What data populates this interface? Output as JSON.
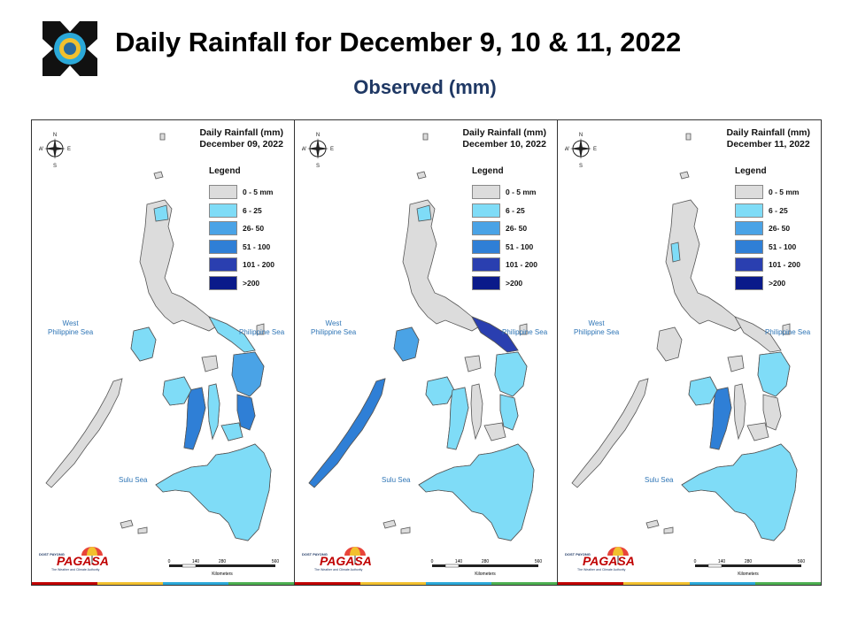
{
  "header": {
    "title": "Daily Rainfall for December 9, 10 & 11, 2022",
    "subtitle": "Observed (mm)"
  },
  "legend": {
    "title": "Legend",
    "items": [
      {
        "label": "0 - 5 mm",
        "color": "#dcdcdc"
      },
      {
        "label": "6 - 25",
        "color": "#7fdcf7"
      },
      {
        "label": "26- 50",
        "color": "#4aa3e6"
      },
      {
        "label": "51 - 100",
        "color": "#2f7fd6"
      },
      {
        "label": "101 - 200",
        "color": "#2a3fb0"
      },
      {
        "label": ">200",
        "color": "#0a1a8a"
      }
    ]
  },
  "panels": [
    {
      "title_line1": "Daily Rainfall (mm)",
      "title_line2": "December 09, 2022"
    },
    {
      "title_line1": "Daily Rainfall (mm)",
      "title_line2": "December 10, 2022"
    },
    {
      "title_line1": "Daily Rainfall (mm)",
      "title_line2": "December 11, 2022"
    }
  ],
  "map_labels": {
    "west_sea_line1": "West",
    "west_sea_line2": "Philippine Sea",
    "philippine_sea": "Philippine Sea",
    "sulu_sea": "Sulu Sea",
    "compass_n": "N",
    "compass_s": "S",
    "compass_e": "E",
    "compass_w": "W"
  },
  "scale_bar": {
    "ticks": [
      "0",
      "140",
      "280",
      "560"
    ],
    "unit": "Kilometers"
  },
  "branding": {
    "dost": "DOST",
    "payong": "PAYONG",
    "name": "PAGASA",
    "tagline": "The Weather and Climate Authority"
  },
  "colors": {
    "land": "#dcdcdc",
    "border": "#555555",
    "subtitle": "#1f3864",
    "sea_label": "#2e75b6"
  }
}
